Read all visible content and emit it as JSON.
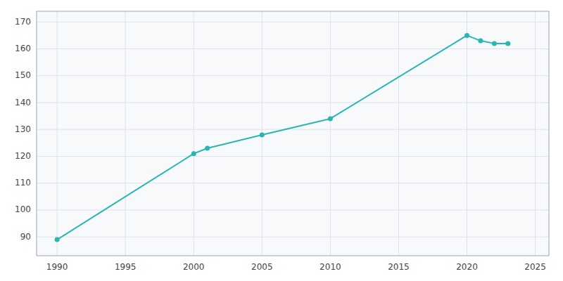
{
  "chart_data": {
    "type": "line",
    "x": [
      1990,
      2000,
      2001,
      2005,
      2010,
      2020,
      2021,
      2022,
      2023
    ],
    "values": [
      89,
      121,
      123,
      128,
      134,
      165,
      163,
      162,
      162
    ],
    "color": "#2ab5b5",
    "marker": "circle",
    "xlim": [
      1988.5,
      2026
    ],
    "ylim": [
      83,
      174
    ],
    "xticks": [
      1990,
      1995,
      2000,
      2005,
      2010,
      2015,
      2020,
      2025
    ],
    "yticks": [
      90,
      100,
      110,
      120,
      130,
      140,
      150,
      160,
      170
    ],
    "grid": true
  }
}
